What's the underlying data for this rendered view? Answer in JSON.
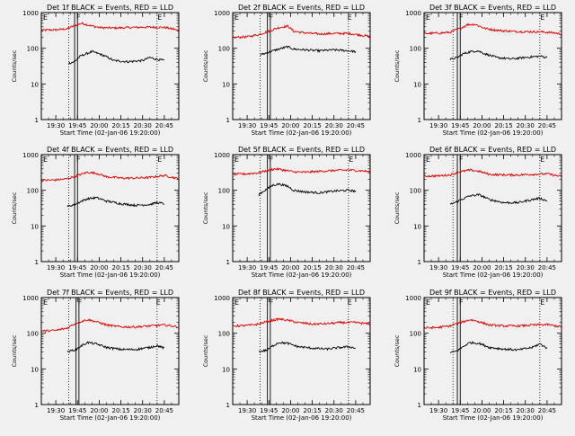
{
  "figure": {
    "start_time_label": "Start Time (02-Jan-06 19:20:00)",
    "y_axis_label": "Counts/sec",
    "x_tick_labels": [
      "19:30",
      "19:45",
      "20:00",
      "20:15",
      "20:30",
      "20:45"
    ],
    "y_tick_labels": [
      "1",
      "10",
      "100",
      "1000"
    ],
    "colors": {
      "events": "#000000",
      "lld": "#e00000",
      "frame": "#000000",
      "background": "#f0f0f0"
    }
  },
  "chart_data": [
    {
      "type": "line",
      "title": "Det 1f BLACK = Events, RED = LLD",
      "ylabel": "Counts/sec",
      "xlabel": "Start Time (02-Jan-06 19:20:00)",
      "x_unit": "minutes after 19:20:00",
      "xlim": [
        0,
        95
      ],
      "ylim": [
        1,
        1000
      ],
      "y_scale": "log",
      "markers": [
        {
          "label": "E",
          "x": 0
        },
        {
          "label": "F",
          "x": 23
        },
        {
          "label": "E",
          "x": 79
        }
      ],
      "vlines_dotted": [
        19,
        80
      ],
      "vlines_solid": [
        23,
        25
      ],
      "series": [
        {
          "name": "LLD",
          "color": "#e00000",
          "x": [
            0,
            10,
            18,
            22,
            28,
            34,
            40,
            50,
            60,
            70,
            80,
            86,
            92,
            95
          ],
          "y": [
            320,
            330,
            350,
            420,
            500,
            430,
            380,
            370,
            380,
            390,
            390,
            380,
            340,
            310
          ]
        },
        {
          "name": "Events",
          "color": "#000000",
          "x": [
            19,
            23,
            27,
            31,
            35,
            40,
            50,
            60,
            70,
            75,
            79,
            85
          ],
          "y": [
            38,
            42,
            60,
            70,
            80,
            70,
            45,
            42,
            45,
            55,
            50,
            45
          ]
        }
      ]
    },
    {
      "type": "line",
      "title": "Det 2f BLACK = Events, RED = LLD",
      "ylabel": "Counts/sec",
      "xlabel": "Start Time (02-Jan-06 19:20:00)",
      "x_unit": "minutes after 19:20:00",
      "xlim": [
        0,
        95
      ],
      "ylim": [
        1,
        1000
      ],
      "y_scale": "log",
      "markers": [
        {
          "label": "E",
          "x": 0
        },
        {
          "label": "F",
          "x": 24
        },
        {
          "label": "E",
          "x": 78
        }
      ],
      "vlines_dotted": [
        19,
        80
      ],
      "vlines_solid": [
        24,
        26
      ],
      "series": [
        {
          "name": "LLD",
          "color": "#e00000",
          "x": [
            0,
            10,
            18,
            25,
            32,
            38,
            42,
            50,
            60,
            70,
            80,
            90,
            95
          ],
          "y": [
            200,
            210,
            240,
            300,
            380,
            420,
            300,
            270,
            250,
            260,
            260,
            230,
            210
          ]
        },
        {
          "name": "Events",
          "color": "#000000",
          "x": [
            19,
            24,
            28,
            32,
            38,
            42,
            50,
            60,
            70,
            80,
            85
          ],
          "y": [
            65,
            75,
            85,
            95,
            110,
            95,
            90,
            85,
            90,
            85,
            80
          ]
        }
      ]
    },
    {
      "type": "line",
      "title": "Det 3f BLACK = Events, RED = LLD",
      "ylabel": "Counts/sec",
      "xlabel": "Start Time (02-Jan-06 19:20:00)",
      "x_unit": "minutes after 19:20:00",
      "xlim": [
        0,
        95
      ],
      "ylim": [
        1,
        1000
      ],
      "y_scale": "log",
      "markers": [
        {
          "label": "E",
          "x": 0
        },
        {
          "label": "F",
          "x": 23
        },
        {
          "label": "E",
          "x": 79
        }
      ],
      "vlines_dotted": [
        20,
        80
      ],
      "vlines_solid": [
        23,
        25
      ],
      "series": [
        {
          "name": "LLD",
          "color": "#e00000",
          "x": [
            0,
            10,
            18,
            25,
            30,
            35,
            42,
            50,
            60,
            70,
            80,
            90,
            95
          ],
          "y": [
            260,
            265,
            280,
            360,
            460,
            470,
            360,
            320,
            300,
            290,
            290,
            270,
            250
          ]
        },
        {
          "name": "Events",
          "color": "#000000",
          "x": [
            18,
            23,
            27,
            32,
            37,
            42,
            50,
            60,
            70,
            80,
            85
          ],
          "y": [
            48,
            55,
            70,
            80,
            85,
            70,
            55,
            50,
            55,
            60,
            55
          ]
        }
      ]
    },
    {
      "type": "line",
      "title": "Det 4f BLACK = Events, RED = LLD",
      "ylabel": "Counts/sec",
      "xlabel": "Start Time (02-Jan-06 19:20:00)",
      "x_unit": "minutes after 19:20:00",
      "xlim": [
        0,
        95
      ],
      "ylim": [
        1,
        1000
      ],
      "y_scale": "log",
      "markers": [
        {
          "label": "E",
          "x": 0
        },
        {
          "label": "F",
          "x": 23
        },
        {
          "label": "E",
          "x": 79
        }
      ],
      "vlines_dotted": [
        19,
        80
      ],
      "vlines_solid": [
        23,
        25
      ],
      "series": [
        {
          "name": "LLD",
          "color": "#e00000",
          "x": [
            0,
            10,
            18,
            25,
            32,
            38,
            45,
            55,
            65,
            75,
            85,
            95
          ],
          "y": [
            190,
            195,
            210,
            260,
            320,
            300,
            240,
            220,
            220,
            230,
            260,
            210
          ]
        },
        {
          "name": "Events",
          "color": "#000000",
          "x": [
            18,
            23,
            27,
            32,
            38,
            45,
            55,
            65,
            75,
            80,
            85
          ],
          "y": [
            35,
            40,
            48,
            58,
            62,
            50,
            42,
            38,
            40,
            45,
            42
          ]
        }
      ]
    },
    {
      "type": "line",
      "title": "Det 5f BLACK = Events, RED = LLD",
      "ylabel": "Counts/sec",
      "xlabel": "Start Time (02-Jan-06 19:20:00)",
      "x_unit": "minutes after 19:20:00",
      "xlim": [
        0,
        95
      ],
      "ylim": [
        1,
        1000
      ],
      "y_scale": "log",
      "markers": [
        {
          "label": "E",
          "x": 0
        },
        {
          "label": "F",
          "x": 24
        },
        {
          "label": "E",
          "x": 79
        }
      ],
      "vlines_dotted": [
        19,
        80
      ],
      "vlines_solid": [
        24,
        26
      ],
      "series": [
        {
          "name": "LLD",
          "color": "#e00000",
          "x": [
            0,
            10,
            18,
            25,
            30,
            35,
            42,
            50,
            60,
            70,
            80,
            90,
            95
          ],
          "y": [
            280,
            290,
            310,
            370,
            400,
            370,
            330,
            320,
            340,
            360,
            370,
            350,
            330
          ]
        },
        {
          "name": "Events",
          "color": "#000000",
          "x": [
            18,
            24,
            28,
            32,
            38,
            42,
            50,
            60,
            70,
            80,
            85
          ],
          "y": [
            75,
            110,
            140,
            150,
            130,
            100,
            90,
            85,
            95,
            100,
            95
          ]
        }
      ]
    },
    {
      "type": "line",
      "title": "Det 6f BLACK = Events, RED = LLD",
      "ylabel": "Counts/sec",
      "xlabel": "Start Time (02-Jan-06 19:20:00)",
      "x_unit": "minutes after 19:20:00",
      "xlim": [
        0,
        95
      ],
      "ylim": [
        1,
        1000
      ],
      "y_scale": "log",
      "markers": [
        {
          "label": "E",
          "x": 0
        },
        {
          "label": "F",
          "x": 23
        },
        {
          "label": "E",
          "x": 79
        }
      ],
      "vlines_dotted": [
        20,
        80
      ],
      "vlines_solid": [
        23,
        25
      ],
      "series": [
        {
          "name": "LLD",
          "color": "#e00000",
          "x": [
            0,
            10,
            18,
            25,
            32,
            38,
            45,
            55,
            65,
            75,
            85,
            95
          ],
          "y": [
            250,
            255,
            270,
            330,
            370,
            340,
            280,
            270,
            270,
            280,
            290,
            240
          ]
        },
        {
          "name": "Events",
          "color": "#000000",
          "x": [
            18,
            23,
            27,
            32,
            38,
            45,
            55,
            65,
            75,
            80,
            85
          ],
          "y": [
            40,
            48,
            58,
            70,
            75,
            55,
            45,
            45,
            55,
            60,
            50
          ]
        }
      ]
    },
    {
      "type": "line",
      "title": "Det 7f BLACK = Events, RED = LLD",
      "ylabel": "Counts/sec",
      "xlabel": "Start Time (02-Jan-06 19:20:00)",
      "x_unit": "minutes after 19:20:00",
      "xlim": [
        0,
        95
      ],
      "ylim": [
        1,
        1000
      ],
      "y_scale": "log",
      "markers": [
        {
          "label": "E",
          "x": 0
        },
        {
          "label": "F",
          "x": 24
        },
        {
          "label": "E",
          "x": 78
        }
      ],
      "vlines_dotted": [
        19,
        80
      ],
      "vlines_solid": [
        24,
        26
      ],
      "series": [
        {
          "name": "LLD",
          "color": "#e00000",
          "x": [
            0,
            10,
            18,
            25,
            32,
            38,
            45,
            55,
            65,
            75,
            85,
            95
          ],
          "y": [
            115,
            120,
            140,
            200,
            240,
            210,
            170,
            150,
            150,
            160,
            170,
            150
          ]
        },
        {
          "name": "Events",
          "color": "#000000",
          "x": [
            18,
            24,
            28,
            32,
            38,
            45,
            55,
            65,
            75,
            80,
            85
          ],
          "y": [
            30,
            35,
            45,
            55,
            50,
            40,
            35,
            35,
            40,
            45,
            38
          ]
        }
      ]
    },
    {
      "type": "line",
      "title": "Det 8f BLACK = Events, RED = LLD",
      "ylabel": "Counts/sec",
      "xlabel": "Start Time (02-Jan-06 19:20:00)",
      "x_unit": "minutes after 19:20:00",
      "xlim": [
        0,
        95
      ],
      "ylim": [
        1,
        1000
      ],
      "y_scale": "log",
      "markers": [
        {
          "label": "E",
          "x": 0
        },
        {
          "label": "F",
          "x": 24
        },
        {
          "label": "E",
          "x": 78
        }
      ],
      "vlines_dotted": [
        19,
        80
      ],
      "vlines_solid": [
        24,
        26
      ],
      "series": [
        {
          "name": "LLD",
          "color": "#e00000",
          "x": [
            0,
            10,
            18,
            25,
            32,
            38,
            45,
            55,
            65,
            75,
            85,
            95
          ],
          "y": [
            160,
            165,
            180,
            220,
            250,
            230,
            200,
            180,
            185,
            200,
            200,
            180
          ]
        },
        {
          "name": "Events",
          "color": "#000000",
          "x": [
            18,
            24,
            28,
            32,
            38,
            45,
            55,
            65,
            75,
            80,
            85
          ],
          "y": [
            30,
            34,
            45,
            55,
            52,
            42,
            38,
            36,
            40,
            42,
            38
          ]
        }
      ]
    },
    {
      "type": "line",
      "title": "Det 9f BLACK = Events, RED = LLD",
      "ylabel": "Counts/sec",
      "xlabel": "Start Time (02-Jan-06 19:20:00)",
      "x_unit": "minutes after 19:20:00",
      "xlim": [
        0,
        95
      ],
      "ylim": [
        1,
        1000
      ],
      "y_scale": "log",
      "markers": [
        {
          "label": "E",
          "x": 0
        },
        {
          "label": "F",
          "x": 23
        },
        {
          "label": "E",
          "x": 79
        }
      ],
      "vlines_dotted": [
        20,
        80
      ],
      "vlines_solid": [
        23,
        25
      ],
      "series": [
        {
          "name": "LLD",
          "color": "#e00000",
          "x": [
            0,
            10,
            18,
            25,
            32,
            38,
            45,
            55,
            65,
            75,
            85,
            95
          ],
          "y": [
            140,
            145,
            160,
            200,
            240,
            210,
            170,
            160,
            160,
            170,
            175,
            150
          ]
        },
        {
          "name": "Events",
          "color": "#000000",
          "x": [
            18,
            23,
            27,
            32,
            38,
            45,
            55,
            65,
            75,
            80,
            85
          ],
          "y": [
            28,
            32,
            42,
            55,
            52,
            40,
            36,
            34,
            40,
            50,
            38
          ]
        }
      ]
    }
  ]
}
